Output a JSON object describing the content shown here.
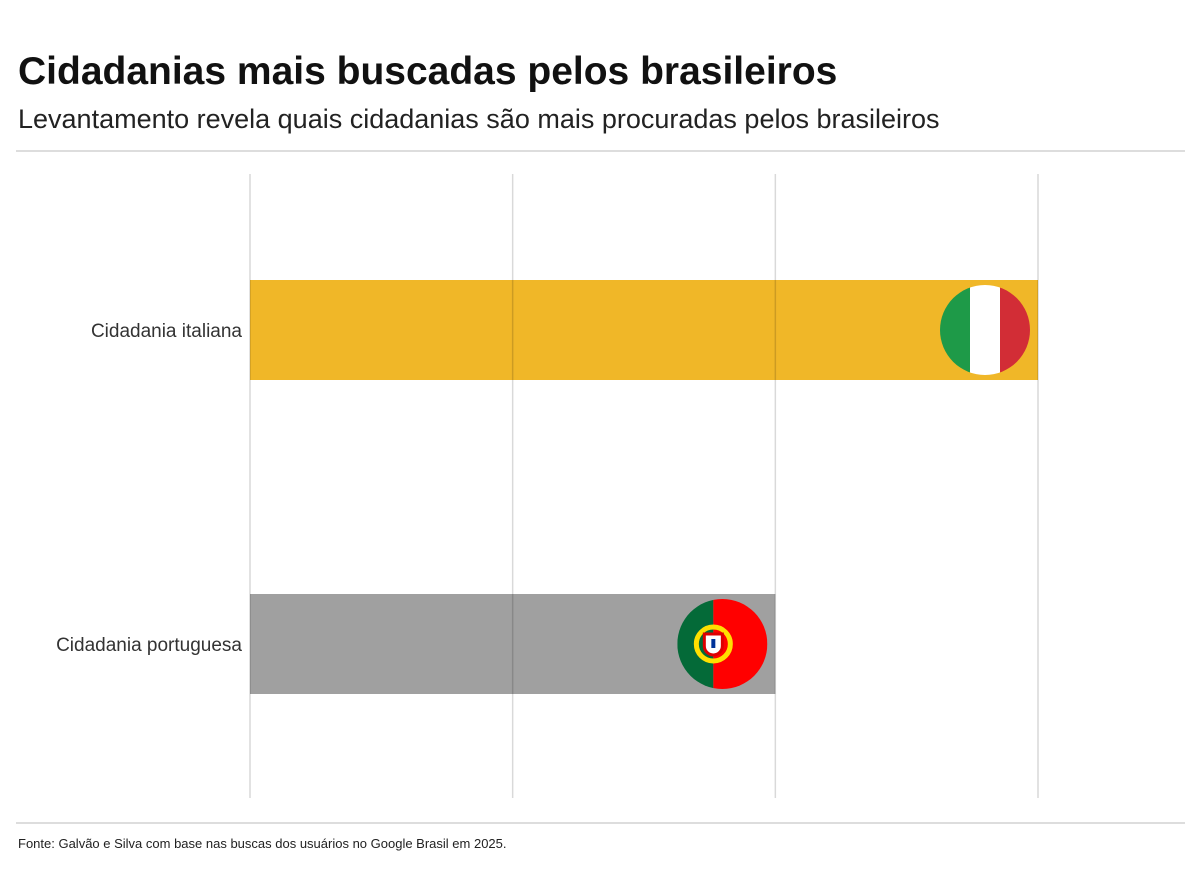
{
  "header": {
    "title": "Cidadanias mais buscadas pelos brasileiros",
    "subtitle": "Levantamento revela quais cidadanias são mais procuradas pelos brasileiros"
  },
  "footer": {
    "source": "Fonte: Galvão e Silva com base nas buscas dos usuários no Google Brasil em 2025."
  },
  "chart_data": {
    "type": "bar",
    "orientation": "horizontal",
    "categories": [
      "Cidadania italiana",
      "Cidadania portuguesa"
    ],
    "values": [
      3,
      2
    ],
    "xlim": [
      0,
      3
    ],
    "grid": true,
    "bar_colors": [
      "#f0b728",
      "#a0a0a0"
    ],
    "icons": [
      "italy-flag-icon",
      "portugal-flag-icon"
    ],
    "title": "",
    "xlabel": "",
    "ylabel": ""
  }
}
